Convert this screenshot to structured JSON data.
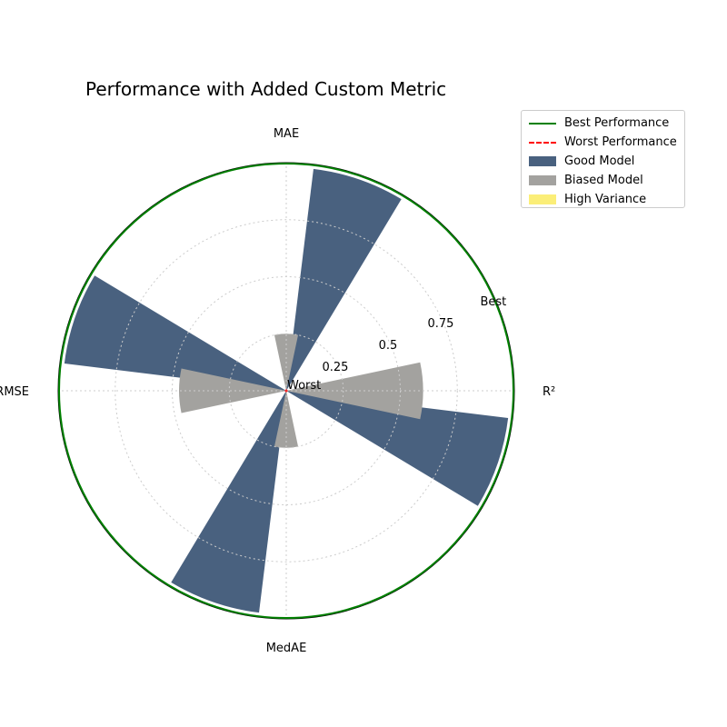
{
  "chart_data": {
    "type": "polar-bar",
    "title": "Performance with Added Custom Metric",
    "axes": [
      "R²",
      "MAE",
      "RMSE",
      "MedAE"
    ],
    "radial_ticks": [
      "Worst",
      "0.25",
      "0.5",
      "0.75",
      "Best"
    ],
    "radial_tick_values": [
      0,
      0.25,
      0.5,
      0.75,
      1.0
    ],
    "rlim": [
      0,
      1.0
    ],
    "grid": true,
    "legend_position": "top-right outside",
    "reference_lines": [
      {
        "name": "Best Performance",
        "value": 1.0,
        "color": "#008000",
        "style": "solid"
      },
      {
        "name": "Worst Performance",
        "value": 0.0,
        "color": "#ff0000",
        "style": "dashed"
      }
    ],
    "series": [
      {
        "name": "Good Model",
        "color": "#49617f",
        "values": [
          {
            "angle_deg": -19,
            "value": 0.98
          },
          {
            "angle_deg": 71,
            "value": 0.98
          },
          {
            "angle_deg": 161,
            "value": 0.98
          },
          {
            "angle_deg": 251,
            "value": 0.98
          }
        ]
      },
      {
        "name": "Biased Model",
        "color": "#a3a29f",
        "values": [
          {
            "angle_deg": 0,
            "value": 0.6
          },
          {
            "angle_deg": 90,
            "value": 0.25
          },
          {
            "angle_deg": 180,
            "value": 0.47
          },
          {
            "angle_deg": 270,
            "value": 0.25
          }
        ]
      },
      {
        "name": "High Variance",
        "color": "#fbee78",
        "values": []
      }
    ]
  }
}
